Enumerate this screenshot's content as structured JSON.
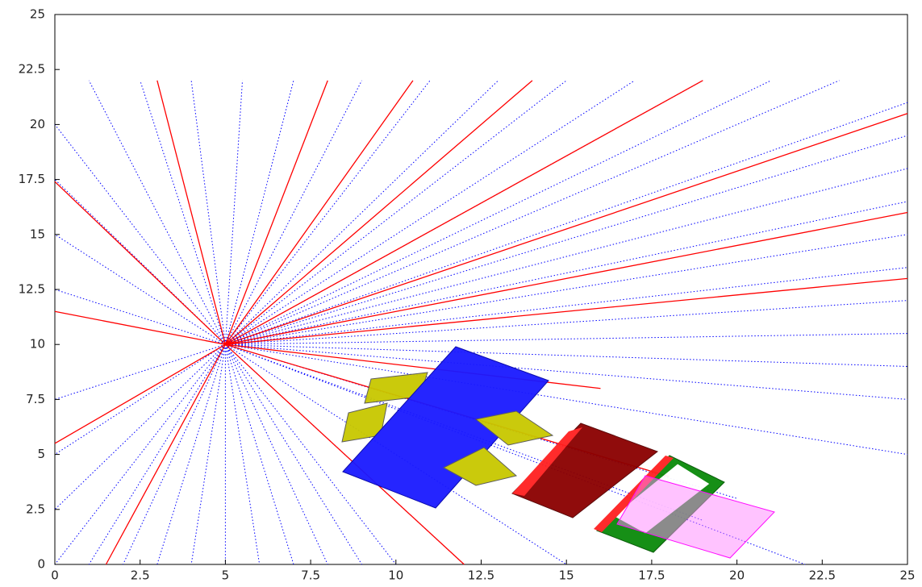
{
  "chart_data": {
    "type": "tracks",
    "xlim": [
      0,
      25
    ],
    "ylim": [
      0,
      25
    ],
    "xticks": [
      0,
      2.5,
      5,
      7.5,
      10,
      12.5,
      15,
      17.5,
      20,
      22.5,
      25
    ],
    "yticks": [
      0,
      2.5,
      5,
      7.5,
      10,
      12.5,
      15,
      17.5,
      20,
      22.5,
      25
    ],
    "series": [
      {
        "color": "#0000ff",
        "style": "dotted",
        "x": [
          5,
          0,
          null,
          5,
          1,
          null,
          5,
          2,
          null,
          5,
          3,
          null,
          5,
          4,
          null,
          5,
          5,
          null,
          5,
          6,
          null,
          5,
          7,
          null,
          5,
          8,
          null,
          5,
          9,
          null,
          5,
          10,
          null,
          5,
          12,
          null,
          5,
          15,
          null,
          5,
          22,
          null,
          5,
          0,
          null,
          5,
          0,
          null,
          5,
          0,
          null,
          5,
          0,
          null,
          5,
          0,
          null,
          5,
          0,
          null,
          5,
          0,
          null,
          5,
          1,
          null,
          5,
          2.5,
          null,
          5,
          4,
          null,
          5,
          5.5,
          null,
          5,
          7,
          null,
          5,
          9,
          null,
          5,
          11,
          null,
          5,
          13,
          null,
          5,
          15,
          null,
          5,
          17,
          null,
          5,
          19,
          null,
          5,
          21,
          null,
          5,
          23,
          null,
          5,
          25,
          null,
          5,
          25,
          null,
          5,
          25,
          null,
          5,
          25,
          null,
          5,
          25,
          null,
          5,
          25,
          null,
          5,
          25,
          null,
          5,
          25,
          null,
          5,
          25,
          null,
          5,
          25,
          null,
          5,
          25,
          null,
          5,
          20,
          null,
          5,
          19
        ],
        "y": [
          10,
          0,
          null,
          10,
          0,
          null,
          10,
          0,
          null,
          10,
          0,
          null,
          10,
          0,
          null,
          10,
          0,
          null,
          10,
          0,
          null,
          10,
          0,
          null,
          10,
          0,
          null,
          10,
          0,
          null,
          10,
          0,
          null,
          10,
          0,
          null,
          10,
          0,
          null,
          10,
          0,
          null,
          10,
          2.5,
          null,
          10,
          5,
          null,
          10,
          7.5,
          null,
          10,
          12.5,
          null,
          10,
          15,
          null,
          10,
          17.5,
          null,
          10,
          20,
          null,
          10,
          22,
          null,
          10,
          22,
          null,
          10,
          22,
          null,
          10,
          22,
          null,
          10,
          22,
          null,
          10,
          22,
          null,
          10,
          22,
          null,
          10,
          22,
          null,
          10,
          22,
          null,
          10,
          22,
          null,
          10,
          22,
          null,
          10,
          22,
          null,
          10,
          22,
          null,
          10,
          21,
          null,
          10,
          19.5,
          null,
          10,
          18,
          null,
          10,
          16.5,
          null,
          10,
          15,
          null,
          10,
          13.5,
          null,
          10,
          12,
          null,
          10,
          10.5,
          null,
          10,
          9,
          null,
          10,
          7.5,
          null,
          10,
          5,
          null,
          10,
          3,
          null,
          10,
          2
        ]
      },
      {
        "color": "#ff0000",
        "style": "solid",
        "x": [
          5,
          0,
          null,
          5,
          0,
          null,
          5,
          1.5,
          null,
          5,
          3,
          null,
          5,
          8,
          null,
          5,
          10.5,
          null,
          5,
          14,
          null,
          5,
          19,
          null,
          5,
          25,
          null,
          5,
          25,
          null,
          5,
          25,
          null,
          5,
          18,
          null,
          5,
          16,
          null,
          5,
          12,
          null,
          5,
          0
        ],
        "y": [
          10,
          11.5,
          null,
          10,
          5.5,
          null,
          10,
          0,
          null,
          10,
          22,
          null,
          10,
          22,
          null,
          10,
          22,
          null,
          10,
          22,
          null,
          10,
          22,
          null,
          10,
          20.5,
          null,
          10,
          16,
          null,
          10,
          13,
          null,
          10,
          4,
          null,
          10,
          8,
          null,
          10,
          0,
          null,
          10,
          17.4
        ]
      }
    ]
  }
}
